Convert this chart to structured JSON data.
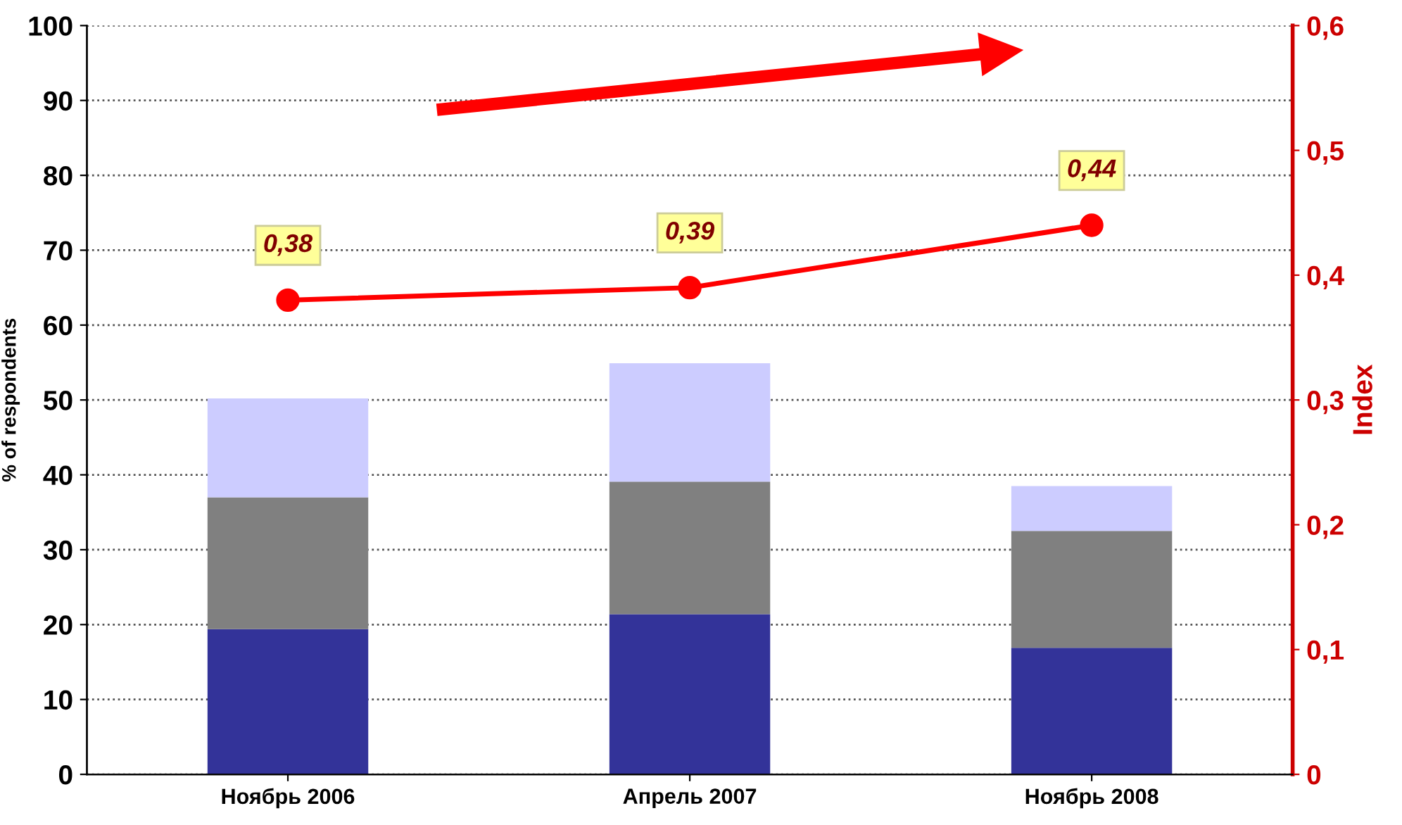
{
  "chart_data": {
    "type": "bar",
    "stacked": true,
    "ylabel": "% of respondents",
    "y2label": "Index",
    "categories": [
      "Ноябрь 2006",
      "Апрель 2007",
      "Ноябрь 2008"
    ],
    "series": [
      {
        "color": "#333399",
        "values": [
          19.4,
          21.4,
          16.9
        ]
      },
      {
        "color": "#808080",
        "values": [
          17.6,
          17.7,
          15.6
        ]
      },
      {
        "color": "#ccccff",
        "values": [
          13.2,
          15.8,
          6.0
        ]
      },
      {
        "type": "line",
        "axis": "y2",
        "color": "#ff0000",
        "marker": "circle",
        "values": [
          0.38,
          0.39,
          0.44
        ],
        "value_labels": [
          "0,38",
          "0,39",
          "0,44"
        ]
      }
    ],
    "ylim": [
      0,
      100
    ],
    "yticks": [
      0,
      10,
      20,
      30,
      40,
      50,
      60,
      70,
      80,
      90,
      100
    ],
    "y2lim": [
      0,
      0.6
    ],
    "y2ticks": [
      0,
      {
        "value": 0.1,
        "label": "0,1"
      },
      {
        "value": 0.2,
        "label": "0,2"
      },
      {
        "value": 0.3,
        "label": "0,3"
      },
      {
        "value": 0.4,
        "label": "0,4"
      },
      {
        "value": 0.5,
        "label": "0,5"
      },
      {
        "value": 0.6,
        "label": "0,6"
      }
    ],
    "grid": "y"
  }
}
